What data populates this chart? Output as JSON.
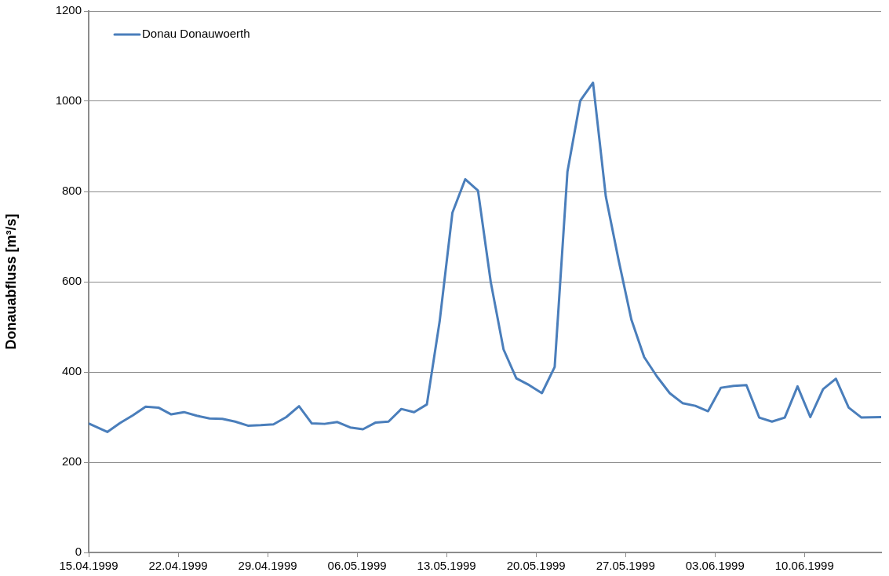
{
  "chart_data": {
    "type": "line",
    "ylabel": "Donauabfluss [m³/s]",
    "x": [
      "1999-04-15",
      "1999-04-16T11:00",
      "1999-04-17T11:00",
      "1999-04-18T11:00",
      "1999-04-19T11:00",
      "1999-04-20T11:00",
      "1999-04-21T11:00",
      "1999-04-22T11:00",
      "1999-04-23T11:00",
      "1999-04-24T11:00",
      "1999-04-25T11:00",
      "1999-04-26T11:00",
      "1999-04-27T11:00",
      "1999-04-28T11:00",
      "1999-04-29T11:00",
      "1999-04-30T11:00",
      "1999-05-01T11:00",
      "1999-05-02T11:00",
      "1999-05-03T11:00",
      "1999-05-04T11:00",
      "1999-05-05T11:00",
      "1999-05-06T11:00",
      "1999-05-07T11:00",
      "1999-05-08T11:00",
      "1999-05-09T11:00",
      "1999-05-10T11:00",
      "1999-05-11T11:00",
      "1999-05-12T11:00",
      "1999-05-13T11:00",
      "1999-05-14T11:00",
      "1999-05-15T11:00",
      "1999-05-16T11:00",
      "1999-05-17T11:00",
      "1999-05-18T11:00",
      "1999-05-19T11:00",
      "1999-05-20T11:00",
      "1999-05-21T11:00",
      "1999-05-22T11:00",
      "1999-05-23T11:00",
      "1999-05-24T11:00",
      "1999-05-25T11:00",
      "1999-05-26T11:00",
      "1999-05-27T11:00",
      "1999-05-28T11:00",
      "1999-05-29T11:00",
      "1999-05-30T11:00",
      "1999-05-31T11:00",
      "1999-06-01T11:00",
      "1999-06-02T11:00",
      "1999-06-03T11:00",
      "1999-06-04T11:00",
      "1999-06-05T11:00",
      "1999-06-06T11:00",
      "1999-06-07T11:00",
      "1999-06-08T11:00",
      "1999-06-09T11:00",
      "1999-06-10T11:00",
      "1999-06-11T11:00",
      "1999-06-12T11:00",
      "1999-06-13T11:00",
      "1999-06-14T11:00",
      "1999-06-16"
    ],
    "series": [
      {
        "name": "Donau Donauwoerth",
        "color": "#4a7ebb",
        "values": [
          286,
          267,
          287,
          304,
          323,
          321,
          306,
          311,
          303,
          297,
          296,
          290,
          281,
          282,
          284,
          300,
          324,
          286,
          285,
          289,
          277,
          273,
          288,
          290,
          318,
          311,
          328,
          512,
          753,
          827,
          802,
          599,
          450,
          386,
          371,
          353,
          411,
          844,
          1001,
          1041,
          789,
          648,
          516,
          433,
          390,
          353,
          331,
          325,
          313,
          365,
          369,
          371,
          299,
          290,
          299,
          368,
          300,
          362,
          385,
          321,
          299,
          300
        ]
      }
    ],
    "xlim": [
      "1999-04-15",
      "1999-06-16"
    ],
    "xticks": [
      {
        "value": "1999-04-15",
        "label": "15.04.1999"
      },
      {
        "value": "1999-04-22",
        "label": "22.04.1999"
      },
      {
        "value": "1999-04-29",
        "label": "29.04.1999"
      },
      {
        "value": "1999-05-06",
        "label": "06.05.1999"
      },
      {
        "value": "1999-05-13",
        "label": "13.05.1999"
      },
      {
        "value": "1999-05-20",
        "label": "20.05.1999"
      },
      {
        "value": "1999-05-27",
        "label": "27.05.1999"
      },
      {
        "value": "1999-06-03",
        "label": "03.06.1999"
      },
      {
        "value": "1999-06-10",
        "label": "10.06.1999"
      }
    ],
    "ylim": [
      0,
      1200
    ],
    "yticks": [
      0,
      200,
      400,
      600,
      800,
      1000,
      1200
    ],
    "grid": "y",
    "legend": "top left",
    "marker": "none",
    "line_style": "solid"
  }
}
